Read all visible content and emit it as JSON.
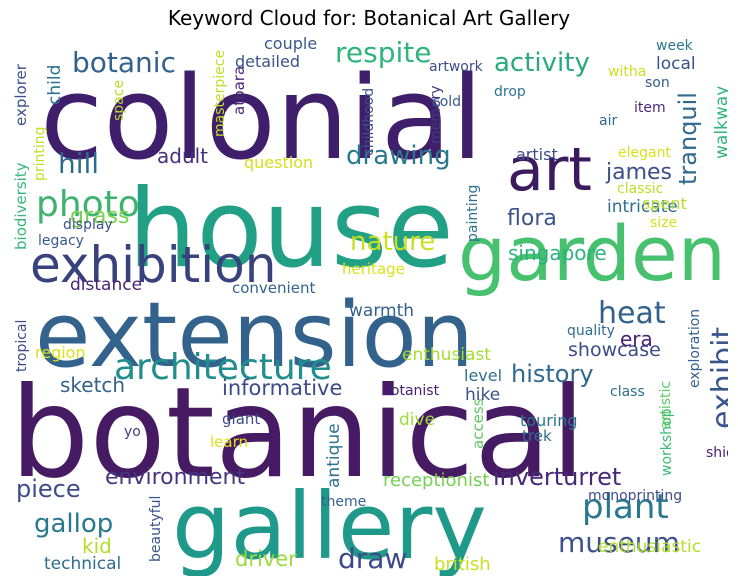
{
  "title": "Keyword Cloud for: Botanical Art Gallery",
  "words": [
    {
      "text": "colonial",
      "color": "#3f1e6b"
    },
    {
      "text": "house",
      "color": "#22a085"
    },
    {
      "text": "botanical",
      "color": "#461b63"
    },
    {
      "text": "extension",
      "color": "#33628d"
    },
    {
      "text": "gallery",
      "color": "#1f9a8a"
    },
    {
      "text": "garden",
      "color": "#47c16e"
    },
    {
      "text": "exhibition",
      "color": "#38427c"
    },
    {
      "text": "art",
      "color": "#3b1b5e"
    },
    {
      "text": "architecture",
      "color": "#218e8d"
    },
    {
      "text": "photo",
      "color": "#3eb36f"
    },
    {
      "text": "respite",
      "color": "#2fb47c"
    },
    {
      "text": "activity",
      "color": "#29a97f"
    },
    {
      "text": "botanic",
      "color": "#34618d"
    },
    {
      "text": "hill",
      "color": "#2f6b8e"
    },
    {
      "text": "drawing",
      "color": "#2a788e"
    },
    {
      "text": "tranquil",
      "color": "#306a8e"
    },
    {
      "text": "james",
      "color": "#3c4f8a"
    },
    {
      "text": "grass",
      "color": "#7cd250"
    },
    {
      "text": "flora",
      "color": "#3b528b"
    },
    {
      "text": "intricate",
      "color": "#2e6f8e"
    },
    {
      "text": "adult",
      "color": "#46317e"
    },
    {
      "text": "nature",
      "color": "#c8e020"
    },
    {
      "text": "singapore",
      "color": "#2db27d"
    },
    {
      "text": "heat",
      "color": "#33638d"
    },
    {
      "text": "exhibit",
      "color": "#39558c"
    },
    {
      "text": "history",
      "color": "#31688e"
    },
    {
      "text": "showcase",
      "color": "#3e4a89"
    },
    {
      "text": "era",
      "color": "#482374"
    },
    {
      "text": "museum",
      "color": "#3b528b"
    },
    {
      "text": "plant",
      "color": "#2a788e"
    },
    {
      "text": "sketch",
      "color": "#33638d"
    },
    {
      "text": "informative",
      "color": "#3e4989"
    },
    {
      "text": "environment",
      "color": "#453581"
    },
    {
      "text": "piece",
      "color": "#3e4c8a"
    },
    {
      "text": "inverturret",
      "color": "#482878"
    },
    {
      "text": "receptionist",
      "color": "#75d054"
    },
    {
      "text": "gallop",
      "color": "#2a788e"
    },
    {
      "text": "kid",
      "color": "#b2dd2d"
    },
    {
      "text": "driver",
      "color": "#9bd93c"
    },
    {
      "text": "draw",
      "color": "#3e4989"
    },
    {
      "text": "british",
      "color": "#c5e021"
    },
    {
      "text": "technical",
      "color": "#2e6d8e"
    },
    {
      "text": "enthusiastic",
      "color": "#b5de2b"
    },
    {
      "text": "monoprinting",
      "color": "#3e4c8a"
    },
    {
      "text": "beautyful",
      "color": "#39558c"
    },
    {
      "text": "theme",
      "color": "#33638d"
    },
    {
      "text": "antique",
      "color": "#2c728e"
    },
    {
      "text": "hike",
      "color": "#3b528b"
    },
    {
      "text": "level",
      "color": "#2e6e8e"
    },
    {
      "text": "enthusiast",
      "color": "#a8db34"
    },
    {
      "text": "botanist",
      "color": "#482071"
    },
    {
      "text": "dive",
      "color": "#9fda3a"
    },
    {
      "text": "giant",
      "color": "#3e4a89"
    },
    {
      "text": "learn",
      "color": "#dde318"
    },
    {
      "text": "yo",
      "color": "#433e85"
    },
    {
      "text": "access",
      "color": "#5ec962"
    },
    {
      "text": "trek",
      "color": "#2e6e8e"
    },
    {
      "text": "touring",
      "color": "#2a788e"
    },
    {
      "text": "class",
      "color": "#2d708e"
    },
    {
      "text": "shiok",
      "color": "#481d6f"
    },
    {
      "text": "workshop",
      "color": "#3aba76"
    },
    {
      "text": "artistic",
      "color": "#5cc863"
    },
    {
      "text": "quality",
      "color": "#2f6c8e"
    },
    {
      "text": "exploration",
      "color": "#34618d"
    },
    {
      "text": "tropical",
      "color": "#3e4a89"
    },
    {
      "text": "region",
      "color": "#dae319"
    },
    {
      "text": "distance",
      "color": "#482475"
    },
    {
      "text": "convenient",
      "color": "#33638d"
    },
    {
      "text": "warmth",
      "color": "#34618d"
    },
    {
      "text": "heritage",
      "color": "#d8e219"
    },
    {
      "text": "legacy",
      "color": "#38598c"
    },
    {
      "text": "display",
      "color": "#3b528b"
    },
    {
      "text": "biodiversity",
      "color": "#35b779"
    },
    {
      "text": "explorer",
      "color": "#3b528b"
    },
    {
      "text": "child",
      "color": "#2d708e"
    },
    {
      "text": "printing",
      "color": "#c2df23"
    },
    {
      "text": "space",
      "color": "#b8de29"
    },
    {
      "text": "masterpiece",
      "color": "#c0df25"
    },
    {
      "text": "atbara",
      "color": "#482878"
    },
    {
      "text": "question",
      "color": "#d2e21b"
    },
    {
      "text": "couple",
      "color": "#38598c"
    },
    {
      "text": "detailed",
      "color": "#3b528b"
    },
    {
      "text": "childhood",
      "color": "#3b528b"
    },
    {
      "text": "memory",
      "color": "#453781"
    },
    {
      "text": "artwork",
      "color": "#3e4c8a"
    },
    {
      "text": "cold",
      "color": "#38598c"
    },
    {
      "text": "drop",
      "color": "#2c728e"
    },
    {
      "text": "witha",
      "color": "#cae11f"
    },
    {
      "text": "son",
      "color": "#34618d"
    },
    {
      "text": "item",
      "color": "#472a7a"
    },
    {
      "text": "air",
      "color": "#31688e"
    },
    {
      "text": "elegant",
      "color": "#d8e219"
    },
    {
      "text": "classic",
      "color": "#bddf26"
    },
    {
      "text": "spent",
      "color": "#b5de2b"
    },
    {
      "text": "size",
      "color": "#d5e21a"
    },
    {
      "text": "artist",
      "color": "#3e4c8a"
    },
    {
      "text": "painting",
      "color": "#2e6e8e"
    },
    {
      "text": "week",
      "color": "#2a788e"
    },
    {
      "text": "local",
      "color": "#3b528b"
    },
    {
      "text": "walkway",
      "color": "#2fb47c"
    }
  ]
}
